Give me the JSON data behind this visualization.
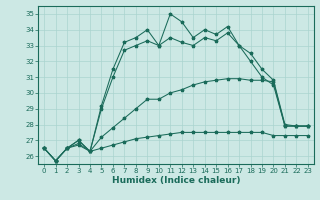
{
  "xlabel": "Humidex (Indice chaleur)",
  "xlim": [
    -0.5,
    23.5
  ],
  "ylim": [
    25.5,
    35.5
  ],
  "yticks": [
    26,
    27,
    28,
    29,
    30,
    31,
    32,
    33,
    34,
    35
  ],
  "xticks": [
    0,
    1,
    2,
    3,
    4,
    5,
    6,
    7,
    8,
    9,
    10,
    11,
    12,
    13,
    14,
    15,
    16,
    17,
    18,
    19,
    20,
    21,
    22,
    23
  ],
  "bg_color": "#cce8e4",
  "grid_color": "#aad4cf",
  "line_color": "#1a6b5a",
  "line1": [
    26.5,
    25.7,
    26.5,
    27.0,
    26.3,
    29.2,
    31.5,
    33.2,
    33.5,
    34.0,
    33.0,
    35.0,
    34.5,
    33.5,
    34.0,
    33.7,
    34.2,
    33.0,
    32.5,
    31.5,
    30.8,
    28.0,
    27.9,
    27.9
  ],
  "line2": [
    26.5,
    25.7,
    26.5,
    27.0,
    26.3,
    29.0,
    31.0,
    32.7,
    33.0,
    33.3,
    33.0,
    33.5,
    33.2,
    33.0,
    33.5,
    33.3,
    33.8,
    33.0,
    32.0,
    31.0,
    30.5,
    27.9,
    27.9,
    27.9
  ],
  "line3": [
    26.5,
    25.7,
    26.5,
    26.8,
    26.3,
    27.2,
    27.8,
    28.4,
    29.0,
    29.6,
    29.6,
    30.0,
    30.2,
    30.5,
    30.7,
    30.8,
    30.9,
    30.9,
    30.8,
    30.8,
    30.7,
    27.9,
    27.9,
    27.9
  ],
  "line4": [
    26.5,
    25.7,
    26.5,
    26.7,
    26.3,
    26.5,
    26.7,
    26.9,
    27.1,
    27.2,
    27.3,
    27.4,
    27.5,
    27.5,
    27.5,
    27.5,
    27.5,
    27.5,
    27.5,
    27.5,
    27.3,
    27.3,
    27.3,
    27.3
  ]
}
